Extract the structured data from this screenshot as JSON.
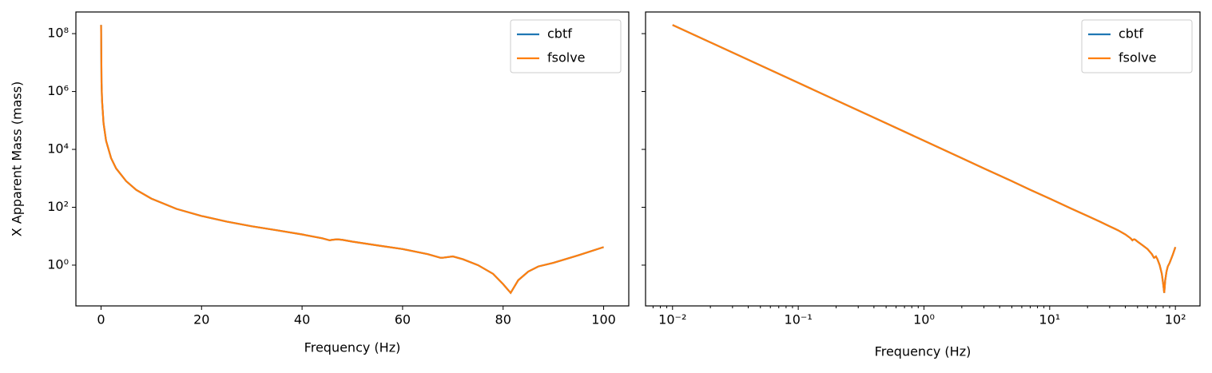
{
  "chart_data": [
    {
      "type": "line",
      "xlabel": "Frequency (Hz)",
      "ylabel": "X Apparent Mass (mass)",
      "xscale": "linear",
      "yscale": "log",
      "xlim": [
        -5,
        105
      ],
      "ylim": [
        0.039,
        560000000
      ],
      "xticks": [
        0,
        20,
        40,
        60,
        80,
        100
      ],
      "yticks": [
        {
          "value": 1,
          "label": "10⁰"
        },
        {
          "value": 100,
          "label": "10²"
        },
        {
          "value": 10000,
          "label": "10⁴"
        },
        {
          "value": 1000000,
          "label": "10⁶"
        },
        {
          "value": 100000000,
          "label": "10⁸"
        }
      ],
      "legend": "upper right",
      "x": [
        0.01,
        0.1,
        0.2,
        0.5,
        1,
        2,
        3,
        5,
        7,
        10,
        15,
        20,
        25,
        30,
        35,
        40,
        44,
        45.5,
        46,
        47,
        48,
        50,
        55,
        60,
        65,
        67.5,
        68,
        70,
        72,
        75,
        78,
        80,
        81.5,
        83,
        85,
        87,
        90,
        95,
        100
      ],
      "series": [
        {
          "name": "cbtf",
          "color": "#1f77b4",
          "values": [
            200000000,
            2000000,
            500000,
            80000,
            20000,
            5000,
            2200,
            800,
            400,
            200,
            88,
            50,
            32,
            22,
            16,
            11.5,
            8.5,
            7.2,
            7.5,
            7.8,
            7.5,
            6.5,
            4.8,
            3.6,
            2.4,
            1.8,
            1.8,
            2.0,
            1.6,
            1.0,
            0.5,
            0.22,
            0.11,
            0.3,
            0.6,
            0.9,
            1.2,
            2.2,
            4.2
          ]
        },
        {
          "name": "fsolve",
          "color": "#ff7f0e",
          "values": [
            200000000,
            2000000,
            500000,
            80000,
            20000,
            5000,
            2200,
            800,
            400,
            200,
            88,
            50,
            32,
            22,
            16,
            11.5,
            8.5,
            7.2,
            7.5,
            7.8,
            7.5,
            6.5,
            4.8,
            3.6,
            2.4,
            1.8,
            1.8,
            2.0,
            1.6,
            1.0,
            0.5,
            0.22,
            0.11,
            0.3,
            0.6,
            0.9,
            1.2,
            2.2,
            4.2
          ]
        }
      ]
    },
    {
      "type": "line",
      "xlabel": "Frequency (Hz)",
      "xscale": "log",
      "yscale": "log",
      "xlim": [
        0.0061,
        157
      ],
      "ylim": [
        0.039,
        560000000
      ],
      "xticks": [
        {
          "value": 0.01,
          "label": "10⁻²"
        },
        {
          "value": 0.1,
          "label": "10⁻¹"
        },
        {
          "value": 1,
          "label": "10⁰"
        },
        {
          "value": 10,
          "label": "10¹"
        },
        {
          "value": 100,
          "label": "10²"
        }
      ],
      "yticks": [
        1,
        100,
        10000,
        1000000,
        100000000
      ],
      "legend": "upper right",
      "x": [
        0.01,
        0.1,
        0.2,
        0.5,
        1,
        2,
        3,
        5,
        7,
        10,
        15,
        20,
        25,
        30,
        35,
        40,
        44,
        45.5,
        46,
        47,
        48,
        50,
        55,
        60,
        65,
        67.5,
        68,
        70,
        72,
        75,
        78,
        80,
        81.5,
        83,
        85,
        87,
        90,
        95,
        100
      ],
      "series": [
        {
          "name": "cbtf",
          "color": "#1f77b4",
          "values": [
            200000000,
            2000000,
            500000,
            80000,
            20000,
            5000,
            2200,
            800,
            400,
            200,
            88,
            50,
            32,
            22,
            16,
            11.5,
            8.5,
            7.2,
            7.5,
            7.8,
            7.5,
            6.5,
            4.8,
            3.6,
            2.4,
            1.8,
            1.8,
            2.0,
            1.6,
            1.0,
            0.5,
            0.22,
            0.11,
            0.3,
            0.6,
            0.9,
            1.2,
            2.2,
            4.2
          ]
        },
        {
          "name": "fsolve",
          "color": "#ff7f0e",
          "values": [
            200000000,
            2000000,
            500000,
            80000,
            20000,
            5000,
            2200,
            800,
            400,
            200,
            88,
            50,
            32,
            22,
            16,
            11.5,
            8.5,
            7.2,
            7.5,
            7.8,
            7.5,
            6.5,
            4.8,
            3.6,
            2.4,
            1.8,
            1.8,
            2.0,
            1.6,
            1.0,
            0.5,
            0.22,
            0.11,
            0.3,
            0.6,
            0.9,
            1.2,
            2.2,
            4.2
          ]
        }
      ]
    }
  ]
}
